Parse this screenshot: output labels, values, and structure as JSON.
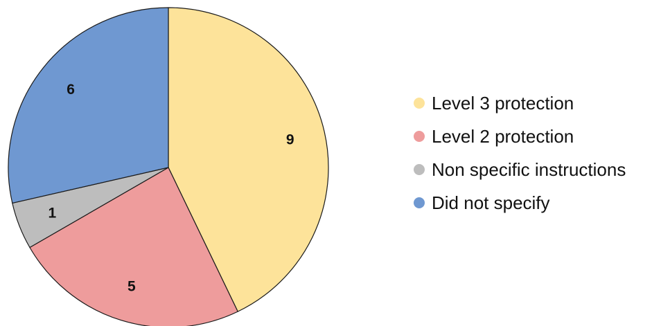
{
  "chart_data": {
    "type": "pie",
    "title": "",
    "categories": [
      "Level 3 protection",
      "Level 2 protection",
      "Non specific instructions",
      "Did not specify"
    ],
    "values": [
      9,
      5,
      1,
      6
    ],
    "data_labels": [
      "9",
      "5",
      "1",
      "6"
    ],
    "colors": [
      "#FDE39A",
      "#EE9C9C",
      "#BDBDBD",
      "#6F98D1"
    ],
    "start_angle": "12 o'clock",
    "direction": "clockwise",
    "legend": {
      "position": "right",
      "marker": "circle"
    }
  }
}
